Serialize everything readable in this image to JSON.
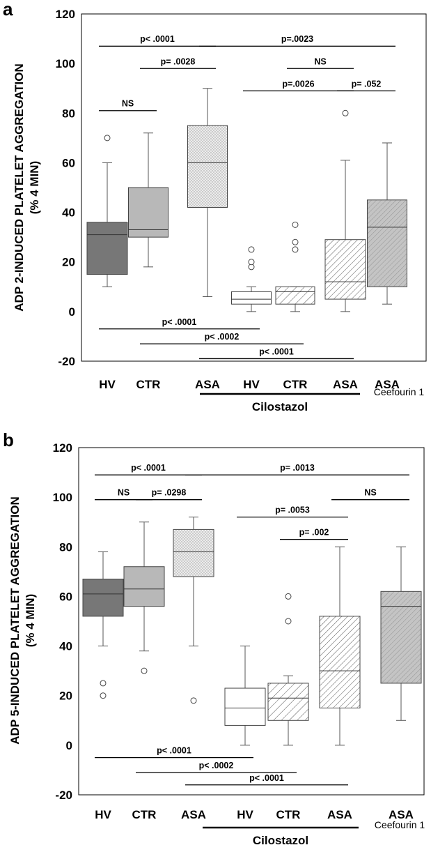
{
  "figure": {
    "panels": [
      {
        "label": "a",
        "ylabel_line1": "ADP 2-INDUCED PLATELET AGGREGATION",
        "ylabel_line2": "(% 4 MIN)",
        "group_label": "Cilostazol",
        "extra_label": "Ceefourin 1"
      },
      {
        "label": "b",
        "ylabel_line1": "ADP 5-INDUCED PLATELET AGGREGATION",
        "ylabel_line2": "(% 4 MIN)",
        "group_label": "Cilostazol",
        "extra_label": "Ceefourin 1"
      }
    ]
  },
  "chart_data": [
    {
      "type": "box",
      "title": "",
      "ylabel": "ADP 2-INDUCED PLATELET AGGREGATION (% 4 MIN)",
      "ylim": [
        -20,
        120
      ],
      "yticks": [
        -20,
        0,
        20,
        40,
        60,
        80,
        100,
        120
      ],
      "categories": [
        "HV",
        "CTR",
        "ASA",
        "HV",
        "CTR",
        "ASA",
        "ASA"
      ],
      "boxes": [
        {
          "category": "HV",
          "group": "",
          "fill": "#777777",
          "pattern": "solid-dark",
          "min": 10,
          "q1": 15,
          "median": 31,
          "q3": 36,
          "max": 60,
          "outliers": [
            70
          ]
        },
        {
          "category": "CTR",
          "group": "",
          "fill": "#b8b8b8",
          "pattern": "solid-light",
          "min": 18,
          "q1": 30,
          "median": 33,
          "q3": 50,
          "max": 72,
          "outliers": []
        },
        {
          "category": "ASA",
          "group": "",
          "fill": "#e2e2e2",
          "pattern": "dots",
          "min": 6,
          "q1": 42,
          "median": 60,
          "q3": 75,
          "max": 90,
          "outliers": []
        },
        {
          "category": "HV",
          "group": "Cilostazol",
          "fill": "#ffffff",
          "pattern": "white",
          "min": 0,
          "q1": 3,
          "median": 5,
          "q3": 8,
          "max": 10,
          "outliers": [
            18,
            20,
            25
          ]
        },
        {
          "category": "CTR",
          "group": "Cilostazol",
          "fill": "#ffffff",
          "pattern": "hatch-wide",
          "min": 0,
          "q1": 3,
          "median": 8,
          "q3": 10,
          "max": 10,
          "outliers": [
            25,
            28,
            35
          ]
        },
        {
          "category": "ASA",
          "group": "Cilostazol",
          "fill": "#ffffff",
          "pattern": "hatch",
          "min": 0,
          "q1": 5,
          "median": 12,
          "q3": 29,
          "max": 61,
          "outliers": [
            80
          ]
        },
        {
          "category": "ASA",
          "group": "Ceefourin 1",
          "fill": "#cfcfcf",
          "pattern": "crosshatch",
          "min": 3,
          "q1": 10,
          "median": 34,
          "q3": 45,
          "max": 68,
          "outliers": []
        }
      ],
      "comparisons": [
        {
          "from": 0,
          "to": 2,
          "y": 107,
          "label": "p< .0001"
        },
        {
          "from": 2,
          "to": 6,
          "y": 107,
          "label": "p=.0023"
        },
        {
          "from": 1,
          "to": 2,
          "y": 98,
          "label": "p= .0028"
        },
        {
          "from": 4,
          "to": 5,
          "y": 98,
          "label": "NS"
        },
        {
          "from": 3,
          "to": 5,
          "y": 89,
          "label": "p=.0026"
        },
        {
          "from": 5,
          "to": 6,
          "y": 89,
          "label": "p= .052"
        },
        {
          "from": 0,
          "to": 1,
          "y": 81,
          "label": "NS"
        },
        {
          "from": 0,
          "to": 3,
          "y": -7,
          "label": "p< .0001"
        },
        {
          "from": 1,
          "to": 4,
          "y": -13,
          "label": "p< .0002"
        },
        {
          "from": 2,
          "to": 5,
          "y": -19,
          "label": "p< .0001"
        }
      ]
    },
    {
      "type": "box",
      "title": "",
      "ylabel": "ADP 5-INDUCED PLATELET AGGREGATION (% 4 MIN)",
      "ylim": [
        -20,
        120
      ],
      "yticks": [
        -20,
        0,
        20,
        40,
        60,
        80,
        100,
        120
      ],
      "categories": [
        "HV",
        "CTR",
        "ASA",
        "HV",
        "CTR",
        "ASA",
        "ASA"
      ],
      "boxes": [
        {
          "category": "HV",
          "group": "",
          "fill": "#777777",
          "pattern": "solid-dark",
          "min": 40,
          "q1": 52,
          "median": 61,
          "q3": 67,
          "max": 78,
          "outliers": [
            20,
            25
          ]
        },
        {
          "category": "CTR",
          "group": "",
          "fill": "#b8b8b8",
          "pattern": "solid-light",
          "min": 38,
          "q1": 56,
          "median": 63,
          "q3": 72,
          "max": 90,
          "outliers": [
            30
          ]
        },
        {
          "category": "ASA",
          "group": "",
          "fill": "#e2e2e2",
          "pattern": "dots",
          "min": 40,
          "q1": 68,
          "median": 78,
          "q3": 87,
          "max": 92,
          "outliers": [
            18
          ]
        },
        {
          "category": "HV",
          "group": "Cilostazol",
          "fill": "#ffffff",
          "pattern": "white",
          "min": 0,
          "q1": 8,
          "median": 15,
          "q3": 23,
          "max": 40,
          "outliers": []
        },
        {
          "category": "CTR",
          "group": "Cilostazol",
          "fill": "#ffffff",
          "pattern": "hatch-wide",
          "min": 0,
          "q1": 10,
          "median": 19,
          "q3": 25,
          "max": 28,
          "outliers": [
            50,
            60
          ]
        },
        {
          "category": "ASA",
          "group": "Cilostazol",
          "fill": "#ffffff",
          "pattern": "hatch",
          "min": 0,
          "q1": 15,
          "median": 30,
          "q3": 52,
          "max": 80,
          "outliers": []
        },
        {
          "category": "ASA",
          "group": "Ceefourin 1",
          "fill": "#cfcfcf",
          "pattern": "crosshatch",
          "min": 10,
          "q1": 25,
          "median": 56,
          "q3": 62,
          "max": 80,
          "outliers": []
        }
      ],
      "comparisons": [
        {
          "from": 0,
          "to": 2,
          "y": 109,
          "label": "p< .0001"
        },
        {
          "from": 2,
          "to": 6,
          "y": 109,
          "label": "p= .0013"
        },
        {
          "from": 0,
          "to": 1,
          "y": 99,
          "label": "NS"
        },
        {
          "from": 1,
          "to": 2,
          "y": 99,
          "label": "p= .0298"
        },
        {
          "from": 5,
          "to": 6,
          "y": 99,
          "label": "NS"
        },
        {
          "from": 3,
          "to": 5,
          "y": 92,
          "label": "p= .0053"
        },
        {
          "from": 4,
          "to": 5,
          "y": 83,
          "label": "p= .002"
        },
        {
          "from": 0,
          "to": 3,
          "y": -5,
          "label": "p< .0001"
        },
        {
          "from": 1,
          "to": 4,
          "y": -11,
          "label": "p< .0002"
        },
        {
          "from": 2,
          "to": 5,
          "y": -16,
          "label": "p< .0001"
        }
      ]
    }
  ]
}
